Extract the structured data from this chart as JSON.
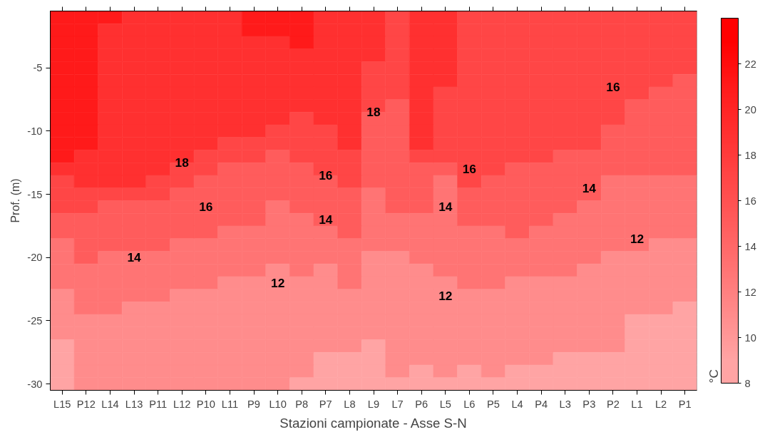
{
  "chart_data": {
    "type": "heatmap",
    "xlabel": "Stazioni campionate - Asse S-N",
    "ylabel": "Prof. (m)",
    "clabel": "°C",
    "categories": [
      "L15",
      "P12",
      "L14",
      "L13",
      "P11",
      "L12",
      "P10",
      "L11",
      "P9",
      "L10",
      "P8",
      "P7",
      "L8",
      "L9",
      "L7",
      "P6",
      "L5",
      "L6",
      "P5",
      "L4",
      "P4",
      "L3",
      "P3",
      "P2",
      "L1",
      "L2",
      "P1"
    ],
    "y_categories": [
      null,
      null,
      null,
      null,
      "-5",
      null,
      null,
      null,
      null,
      "-10",
      null,
      null,
      null,
      null,
      "-15",
      null,
      null,
      null,
      null,
      "-20",
      null,
      null,
      null,
      null,
      "-25",
      null,
      null,
      null,
      null,
      "-30"
    ],
    "clim": [
      8,
      24
    ],
    "cticks": [
      8,
      10,
      12,
      14,
      16,
      18,
      20,
      22
    ],
    "colors": [
      "#ffa4a4",
      "#ff8c8c",
      "#ff7474",
      "#ff5c5c",
      "#ff4646",
      "#ff3030",
      "#ff1a1a",
      "#ff0000"
    ],
    "cells": [
      [
        21,
        21,
        21,
        19,
        19,
        19,
        19,
        19,
        21,
        21,
        21,
        19,
        19,
        19,
        17,
        19,
        19,
        17,
        17,
        17,
        17,
        17,
        17,
        17,
        17,
        17,
        17
      ],
      [
        21,
        21,
        19,
        19,
        19,
        19,
        19,
        19,
        21,
        21,
        21,
        19,
        19,
        19,
        17,
        19,
        19,
        17,
        17,
        17,
        17,
        17,
        17,
        17,
        17,
        17,
        17
      ],
      [
        21,
        21,
        19,
        19,
        19,
        19,
        19,
        19,
        19,
        19,
        21,
        19,
        19,
        19,
        17,
        19,
        19,
        17,
        17,
        17,
        17,
        17,
        17,
        17,
        17,
        17,
        17
      ],
      [
        21,
        21,
        19,
        19,
        19,
        19,
        19,
        19,
        19,
        19,
        19,
        19,
        19,
        19,
        17,
        19,
        19,
        17,
        17,
        17,
        17,
        17,
        17,
        17,
        17,
        17,
        17
      ],
      [
        21,
        21,
        19,
        19,
        19,
        19,
        19,
        19,
        19,
        19,
        19,
        19,
        19,
        17,
        17,
        19,
        19,
        17,
        17,
        17,
        17,
        17,
        17,
        17,
        17,
        17,
        17
      ],
      [
        21,
        21,
        19,
        19,
        19,
        19,
        19,
        19,
        19,
        19,
        19,
        19,
        19,
        17,
        17,
        19,
        19,
        17,
        17,
        17,
        17,
        17,
        17,
        17,
        17,
        17,
        15
      ],
      [
        21,
        21,
        19,
        19,
        19,
        19,
        19,
        19,
        19,
        19,
        19,
        19,
        19,
        17,
        17,
        19,
        17,
        17,
        17,
        17,
        17,
        17,
        17,
        17,
        17,
        15,
        15
      ],
      [
        21,
        21,
        19,
        19,
        19,
        19,
        19,
        19,
        19,
        19,
        19,
        19,
        19,
        17,
        15,
        19,
        17,
        17,
        17,
        17,
        17,
        17,
        17,
        17,
        15,
        15,
        15
      ],
      [
        21,
        21,
        19,
        19,
        19,
        19,
        19,
        19,
        19,
        19,
        17,
        19,
        19,
        15,
        15,
        19,
        17,
        17,
        17,
        17,
        17,
        17,
        17,
        17,
        15,
        15,
        15
      ],
      [
        21,
        21,
        19,
        19,
        19,
        19,
        19,
        19,
        19,
        17,
        17,
        17,
        19,
        15,
        15,
        19,
        17,
        17,
        17,
        17,
        17,
        17,
        17,
        15,
        15,
        15,
        15
      ],
      [
        21,
        21,
        19,
        19,
        19,
        19,
        19,
        17,
        17,
        17,
        17,
        17,
        19,
        15,
        15,
        19,
        17,
        17,
        17,
        17,
        17,
        17,
        17,
        15,
        15,
        15,
        15
      ],
      [
        21,
        19,
        19,
        19,
        19,
        19,
        17,
        17,
        17,
        15,
        17,
        17,
        17,
        15,
        15,
        17,
        17,
        17,
        17,
        17,
        17,
        15,
        15,
        15,
        15,
        15,
        15
      ],
      [
        19,
        19,
        19,
        19,
        19,
        17,
        17,
        15,
        15,
        15,
        15,
        17,
        17,
        15,
        15,
        15,
        15,
        17,
        17,
        15,
        15,
        15,
        15,
        15,
        15,
        15,
        15
      ],
      [
        17,
        19,
        19,
        19,
        17,
        17,
        15,
        15,
        15,
        15,
        15,
        15,
        17,
        15,
        15,
        15,
        13,
        17,
        15,
        15,
        15,
        15,
        15,
        13,
        13,
        13,
        13
      ],
      [
        17,
        17,
        17,
        17,
        17,
        15,
        15,
        15,
        15,
        15,
        15,
        15,
        15,
        13,
        15,
        15,
        13,
        15,
        15,
        15,
        15,
        15,
        15,
        13,
        13,
        13,
        13
      ],
      [
        17,
        17,
        15,
        15,
        15,
        15,
        15,
        15,
        15,
        13,
        15,
        15,
        15,
        13,
        15,
        15,
        13,
        15,
        15,
        15,
        15,
        15,
        13,
        13,
        13,
        13,
        13
      ],
      [
        15,
        15,
        15,
        15,
        15,
        15,
        15,
        15,
        15,
        13,
        13,
        15,
        15,
        13,
        13,
        13,
        13,
        15,
        15,
        15,
        15,
        13,
        13,
        13,
        13,
        13,
        13
      ],
      [
        15,
        15,
        15,
        15,
        15,
        15,
        15,
        13,
        13,
        13,
        13,
        13,
        15,
        13,
        13,
        13,
        13,
        13,
        13,
        15,
        13,
        13,
        13,
        13,
        13,
        13,
        13
      ],
      [
        13,
        15,
        15,
        15,
        15,
        13,
        13,
        13,
        13,
        13,
        13,
        13,
        13,
        13,
        13,
        13,
        13,
        13,
        13,
        13,
        13,
        13,
        13,
        13,
        13,
        11,
        11
      ],
      [
        13,
        15,
        13,
        13,
        13,
        13,
        13,
        13,
        13,
        13,
        13,
        13,
        13,
        11,
        11,
        13,
        13,
        13,
        13,
        13,
        13,
        13,
        13,
        11,
        11,
        11,
        11
      ],
      [
        13,
        13,
        13,
        13,
        13,
        13,
        13,
        13,
        13,
        11,
        13,
        11,
        13,
        11,
        11,
        11,
        13,
        13,
        13,
        13,
        13,
        13,
        11,
        11,
        11,
        11,
        11
      ],
      [
        13,
        13,
        13,
        13,
        13,
        13,
        13,
        11,
        11,
        11,
        11,
        11,
        13,
        11,
        11,
        11,
        11,
        13,
        13,
        11,
        11,
        11,
        11,
        11,
        11,
        11,
        11
      ],
      [
        11,
        13,
        13,
        13,
        13,
        11,
        11,
        11,
        11,
        11,
        11,
        11,
        11,
        11,
        11,
        11,
        11,
        11,
        11,
        11,
        11,
        11,
        11,
        11,
        11,
        11,
        11
      ],
      [
        11,
        13,
        13,
        11,
        11,
        11,
        11,
        11,
        11,
        11,
        11,
        11,
        11,
        11,
        11,
        11,
        11,
        11,
        11,
        11,
        11,
        11,
        11,
        11,
        11,
        11,
        9
      ],
      [
        11,
        11,
        11,
        11,
        11,
        11,
        11,
        11,
        11,
        11,
        11,
        11,
        11,
        11,
        11,
        11,
        11,
        11,
        11,
        11,
        11,
        11,
        11,
        11,
        9,
        9,
        9
      ],
      [
        11,
        11,
        11,
        11,
        11,
        11,
        11,
        11,
        11,
        11,
        11,
        11,
        11,
        11,
        11,
        11,
        11,
        11,
        11,
        11,
        11,
        11,
        11,
        11,
        9,
        9,
        9
      ],
      [
        9,
        11,
        11,
        11,
        11,
        11,
        11,
        11,
        11,
        11,
        11,
        11,
        11,
        9,
        11,
        11,
        11,
        11,
        11,
        11,
        11,
        11,
        11,
        11,
        9,
        9,
        9
      ],
      [
        9,
        11,
        11,
        11,
        11,
        11,
        11,
        11,
        11,
        11,
        11,
        9,
        9,
        9,
        11,
        11,
        11,
        11,
        11,
        11,
        11,
        9,
        9,
        9,
        9,
        9,
        9
      ],
      [
        9,
        11,
        11,
        11,
        11,
        11,
        11,
        11,
        11,
        11,
        11,
        9,
        9,
        9,
        11,
        9,
        11,
        9,
        11,
        9,
        9,
        9,
        9,
        9,
        9,
        9,
        9
      ],
      [
        9,
        11,
        11,
        11,
        11,
        11,
        11,
        11,
        11,
        11,
        9,
        9,
        9,
        9,
        9,
        9,
        9,
        9,
        9,
        9,
        9,
        9,
        9,
        9,
        9,
        9,
        9
      ]
    ],
    "annotations": [
      "18",
      "16",
      "14",
      "16",
      "18",
      "14",
      "12",
      "16",
      "14",
      "12",
      "16",
      "14",
      "12"
    ]
  }
}
